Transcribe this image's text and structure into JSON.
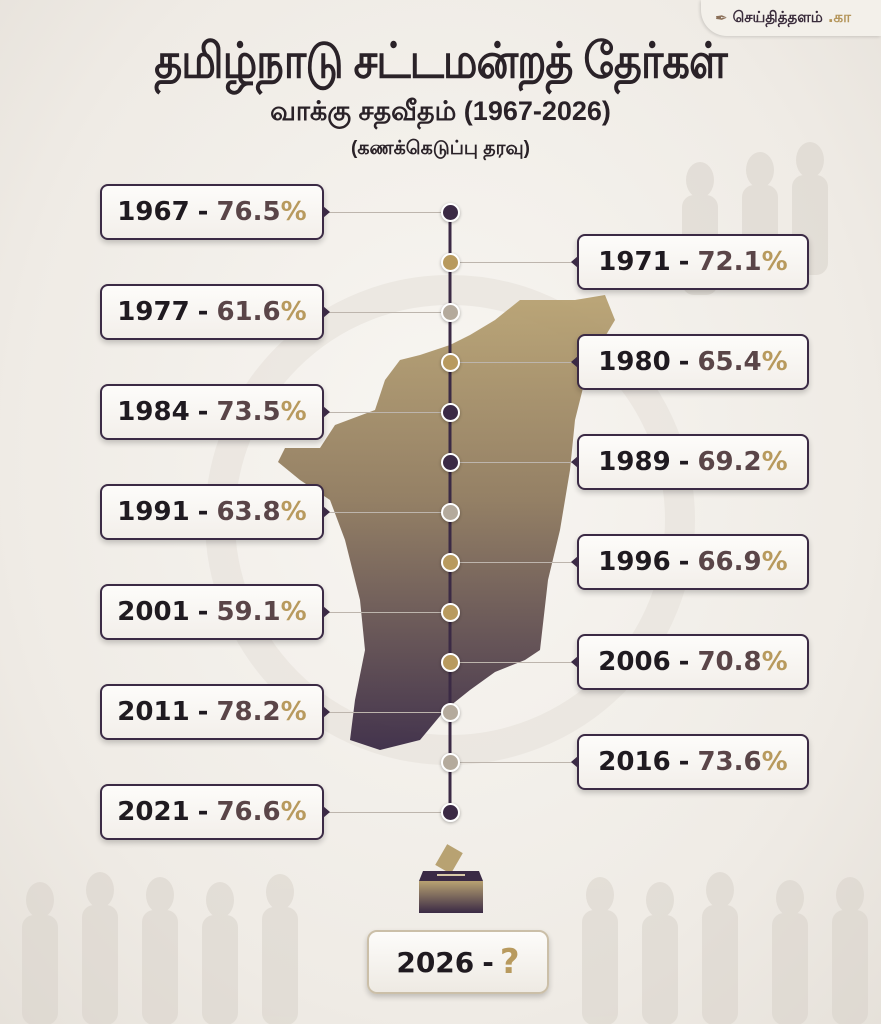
{
  "logo": {
    "text": "செய்தித்தளம்",
    "suffix": ".கா"
  },
  "header": {
    "title": "தமிழ்நாடு சட்டமன்றத் தேர்கள்",
    "subtitle": "வாக்கு சதவீதம் (1967-2026)",
    "note": "(கணக்கெடுப்பு தரவு)"
  },
  "colors": {
    "dark": "#3b2a45",
    "gold": "#b89a5e",
    "grey": "#b4aa9c",
    "percent_number": "#5a4548"
  },
  "timeline": [
    {
      "year": "1967",
      "dash": "-",
      "value": "76.5",
      "unit": "%",
      "side": "left",
      "dot": "dark"
    },
    {
      "year": "1971",
      "dash": "-",
      "value": "72.1",
      "unit": "%",
      "side": "right",
      "dot": "gold"
    },
    {
      "year": "1977",
      "dash": "-",
      "value": "61.6",
      "unit": "%",
      "side": "left",
      "dot": "grey"
    },
    {
      "year": "1980",
      "dash": "-",
      "value": "65.4",
      "unit": "%",
      "side": "right",
      "dot": "gold"
    },
    {
      "year": "1984",
      "dash": "-",
      "value": "73.5",
      "unit": "%",
      "side": "left",
      "dot": "dark"
    },
    {
      "year": "1989",
      "dash": "-",
      "value": "69.2",
      "unit": "%",
      "side": "right",
      "dot": "dark"
    },
    {
      "year": "1991",
      "dash": "-",
      "value": "63.8",
      "unit": "%",
      "side": "left",
      "dot": "grey"
    },
    {
      "year": "1996",
      "dash": "-",
      "value": "66.9",
      "unit": "%",
      "side": "right",
      "dot": "gold"
    },
    {
      "year": "2001",
      "dash": "-",
      "value": "59.1",
      "unit": "%",
      "side": "left",
      "dot": "gold"
    },
    {
      "year": "2006",
      "dash": "-",
      "value": "70.8",
      "unit": "%",
      "side": "right",
      "dot": "gold"
    },
    {
      "year": "2011",
      "dash": "-",
      "value": "78.2",
      "unit": "%",
      "side": "left",
      "dot": "grey"
    },
    {
      "year": "2016",
      "dash": "-",
      "value": "73.6",
      "unit": "%",
      "side": "right",
      "dot": "grey"
    },
    {
      "year": "2021",
      "dash": "-",
      "value": "76.6",
      "unit": "%",
      "side": "left",
      "dot": "dark"
    }
  ],
  "final": {
    "year": "2026",
    "dash": "-",
    "value": "?"
  },
  "icons": {
    "ballot": "ballot-box-icon",
    "logo": "feather-logo-icon",
    "map": "tamil-nadu-map"
  }
}
